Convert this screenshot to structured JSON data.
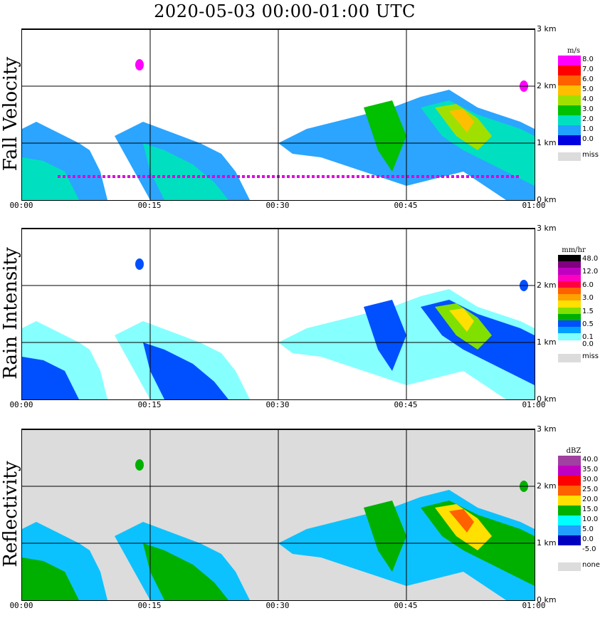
{
  "title": "2020-05-03   00:00-01:00 UTC",
  "x_ticks": [
    "00:00",
    "00:15",
    "00:30",
    "00:45",
    "01:00"
  ],
  "y_ticks": [
    "0 km",
    "1 km",
    "2 km",
    "3 km"
  ],
  "chart_data": [
    {
      "type": "heatmap",
      "name": "Fall Velocity",
      "ylabel": "Fall Velocity",
      "legend_unit": "m/s",
      "legend_levels": [
        "8.0",
        "7.0",
        "6.0",
        "5.0",
        "4.0",
        "3.0",
        "2.0",
        "1.0",
        "0.0"
      ],
      "legend_colors": [
        "#ff00ff",
        "#ff0000",
        "#ff6000",
        "#ffbf00",
        "#a0e000",
        "#00c000",
        "#00e0c0",
        "#20a0ff",
        "#0000e0"
      ],
      "missing_label": "miss",
      "missing_color": "#dcdcdc",
      "background": "#ffffff",
      "x_range_minutes": [
        0,
        60
      ],
      "y_range_km": [
        0,
        3.0
      ],
      "grid": true
    },
    {
      "type": "heatmap",
      "name": "Rain Intensity",
      "ylabel": "Rain Intensity",
      "legend_unit": "mm/hr",
      "legend_levels": [
        "48.0",
        "",
        "12.0",
        "",
        "6.0",
        "",
        "3.0",
        "",
        "1.5",
        "",
        "0.5",
        "",
        "0.1",
        "0.0"
      ],
      "legend_colors": [
        "#000000",
        "#800080",
        "#c000c0",
        "#ff00c0",
        "#ff0040",
        "#ff6000",
        "#ffa000",
        "#ffe000",
        "#80e000",
        "#00b000",
        "#0050ff",
        "#00a0ff",
        "#80ffff",
        "#ffffff"
      ],
      "missing_label": "miss",
      "missing_color": "#dcdcdc",
      "background": "#ffffff",
      "x_range_minutes": [
        0,
        60
      ],
      "y_range_km": [
        0,
        3.0
      ],
      "grid": true
    },
    {
      "type": "heatmap",
      "name": "Reflectivity",
      "ylabel": "Reflectivity",
      "legend_unit": "dBZ",
      "legend_levels": [
        "40.0",
        "35.0",
        "30.0",
        "25.0",
        "20.0",
        "15.0",
        "10.0",
        "5.0",
        "0.0",
        "-5.0"
      ],
      "legend_colors": [
        "#a040a0",
        "#c000c0",
        "#ff0000",
        "#ff6000",
        "#ffe000",
        "#00b000",
        "#00ffff",
        "#20a0ff",
        "#0000c0",
        "#ffffff"
      ],
      "missing_label": "none",
      "missing_color": "#dcdcdc",
      "background": "#dcdcdc",
      "x_range_minutes": [
        0,
        60
      ],
      "y_range_km": [
        0,
        3.0
      ],
      "grid": true
    }
  ]
}
